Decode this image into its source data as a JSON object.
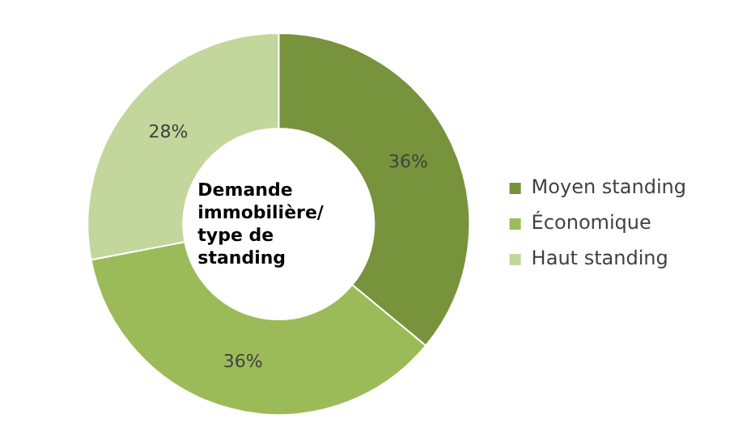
{
  "chart_data": {
    "type": "donut",
    "title": "Demande immobilière/ type de standing",
    "categories": [
      "Moyen standing",
      "Économique",
      "Haut standing"
    ],
    "values": [
      36,
      36,
      28
    ],
    "colors": [
      "#77933c",
      "#9bbb59",
      "#c3d69b"
    ],
    "value_labels": [
      "36%",
      "36%",
      "28%"
    ],
    "legend": "right"
  }
}
